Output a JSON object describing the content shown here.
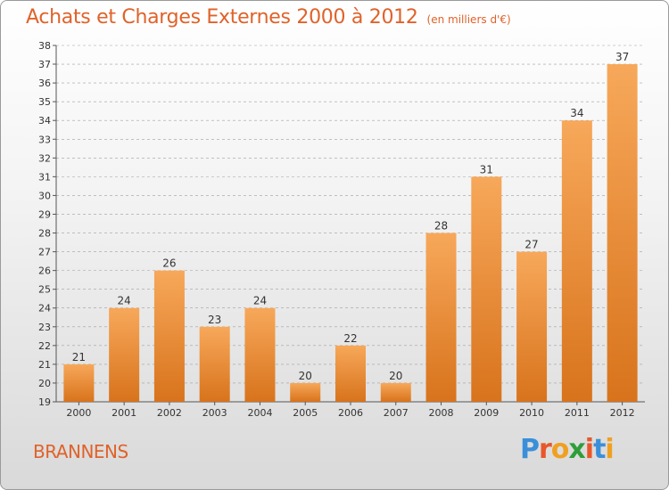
{
  "title": "Achats et Charges Externes 2000 à 2012",
  "subtitle": "(en milliers d'€)",
  "commune": "BRANNENS",
  "logo": {
    "letters": [
      "P",
      "r",
      "o",
      "x",
      "i",
      "t",
      "i"
    ],
    "colors": [
      "#3b8fd9",
      "#e8562a",
      "#f0a020",
      "#2f9e3a",
      "#e8562a",
      "#3b8fd9",
      "#f0a020"
    ]
  },
  "colors": {
    "bar_light": "#f7a85a",
    "bar_dark": "#d8731c",
    "title": "#e0622a",
    "grid": "#a0a0a0"
  },
  "chart_data": {
    "type": "bar",
    "title": "Achats et Charges Externes 2000 à 2012",
    "subtitle": "(en milliers d'€)",
    "categories": [
      "2000",
      "2001",
      "2002",
      "2003",
      "2004",
      "2005",
      "2006",
      "2007",
      "2008",
      "2009",
      "2010",
      "2011",
      "2012"
    ],
    "values": [
      21,
      24,
      26,
      23,
      24,
      20,
      22,
      20,
      28,
      31,
      27,
      34,
      37
    ],
    "ylim": [
      19,
      38
    ],
    "yticks": [
      "19",
      "20",
      "21",
      "22",
      "23",
      "24",
      "25",
      "26",
      "27",
      "28",
      "29",
      "30",
      "31",
      "32",
      "33",
      "34",
      "35",
      "36",
      "37",
      "38"
    ],
    "grid": true
  }
}
